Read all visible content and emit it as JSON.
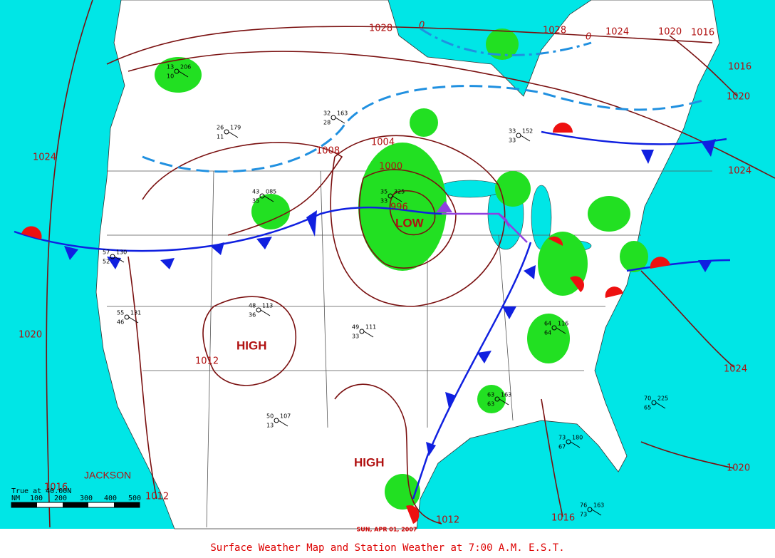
{
  "map": {
    "isobar_labels": [
      "1028",
      "1028",
      "1024",
      "1020",
      "1016",
      "1016",
      "1020",
      "1024",
      "1024",
      "1020",
      "1016",
      "1012",
      "1012",
      "1016",
      "1020",
      "1024",
      "1008",
      "1004",
      "1000",
      "996",
      "1012"
    ],
    "freezing_labels": [
      "0",
      "0"
    ],
    "pressure_centers": [
      "HIGH",
      "HIGH",
      "LOW"
    ],
    "place_label": "JACKSON",
    "scale": {
      "title": "True at 40.00N",
      "unit": "NM",
      "ticks": [
        "100",
        "200",
        "300",
        "400",
        "500"
      ]
    },
    "date": "SUN, APR 01, 2007",
    "caption": "Surface Weather Map and Station Weather at 7:00 A.M. E.S.T.",
    "stations": [
      {
        "temp": "13",
        "pressure": "206",
        "dew": "10"
      },
      {
        "temp": "26",
        "pressure": "179",
        "dew": "11"
      },
      {
        "temp": "32",
        "pressure": "163",
        "dew": "28"
      },
      {
        "temp": "35",
        "pressure": "325",
        "dew": "33"
      },
      {
        "temp": "43",
        "pressure": "085",
        "dew": "35"
      },
      {
        "temp": "57",
        "pressure": "130",
        "dew": "52"
      },
      {
        "temp": "48",
        "pressure": "113",
        "dew": "36"
      },
      {
        "temp": "49",
        "pressure": "111",
        "dew": "33"
      },
      {
        "temp": "63",
        "pressure": "163",
        "dew": "63"
      },
      {
        "temp": "64",
        "pressure": "116",
        "dew": "64"
      },
      {
        "temp": "73",
        "pressure": "180",
        "dew": "67"
      },
      {
        "temp": "70",
        "pressure": "225",
        "dew": "65"
      },
      {
        "temp": "50",
        "pressure": "107",
        "dew": "13"
      },
      {
        "temp": "55",
        "pressure": "131",
        "dew": "46"
      },
      {
        "temp": "33",
        "pressure": "152",
        "dew": "33"
      },
      {
        "temp": "76",
        "pressure": "163",
        "dew": "73"
      }
    ]
  }
}
